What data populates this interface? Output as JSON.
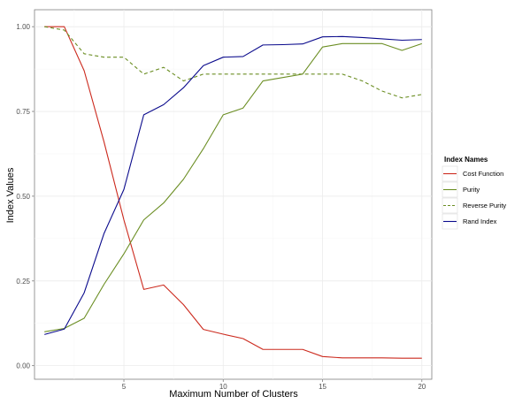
{
  "chart_data": {
    "type": "line",
    "xlabel": "Maximum Number of Clusters",
    "ylabel": "Index Values",
    "xlim": [
      0.5,
      20.5
    ],
    "ylim": [
      -0.04,
      1.05
    ],
    "x_ticks": [
      5,
      10,
      15,
      20
    ],
    "y_ticks": [
      0.0,
      0.25,
      0.5,
      0.75,
      1.0
    ],
    "x_tick_labels": [
      "5",
      "10",
      "15",
      "20"
    ],
    "y_tick_labels": [
      "0.00",
      "0.25",
      "0.50",
      "0.75",
      "1.00"
    ],
    "grid": true,
    "legend": {
      "title": "Index Names",
      "placement": "right"
    },
    "x": [
      1,
      2,
      3,
      4,
      5,
      6,
      7,
      8,
      9,
      10,
      11,
      12,
      13,
      14,
      15,
      16,
      17,
      18,
      19,
      20
    ],
    "series": [
      {
        "name": "Cost Function",
        "color": "#cc2a1e",
        "dash": "solid",
        "values": [
          1.0,
          1.0,
          0.87,
          0.66,
          0.43,
          0.225,
          0.238,
          0.18,
          0.107,
          0.093,
          0.08,
          0.048,
          0.048,
          0.048,
          0.027,
          0.023,
          0.023,
          0.023,
          0.022,
          0.022
        ]
      },
      {
        "name": "Purity",
        "color": "#6b8e23",
        "dash": "solid",
        "values": [
          0.1,
          0.11,
          0.14,
          0.24,
          0.33,
          0.43,
          0.48,
          0.55,
          0.64,
          0.74,
          0.76,
          0.84,
          0.85,
          0.86,
          0.94,
          0.95,
          0.95,
          0.95,
          0.93,
          0.95
        ]
      },
      {
        "name": "Reverse Purity",
        "color": "#6b8e23",
        "dash": "dashed",
        "values": [
          1.0,
          0.99,
          0.92,
          0.91,
          0.91,
          0.86,
          0.88,
          0.84,
          0.86,
          0.86,
          0.86,
          0.86,
          0.86,
          0.86,
          0.86,
          0.86,
          0.84,
          0.81,
          0.79,
          0.8
        ]
      },
      {
        "name": "Rand Index",
        "color": "#0a0a8c",
        "dash": "solid",
        "values": [
          0.092,
          0.108,
          0.215,
          0.39,
          0.52,
          0.74,
          0.77,
          0.82,
          0.885,
          0.91,
          0.912,
          0.946,
          0.947,
          0.949,
          0.97,
          0.971,
          0.968,
          0.964,
          0.96,
          0.962
        ]
      }
    ]
  }
}
